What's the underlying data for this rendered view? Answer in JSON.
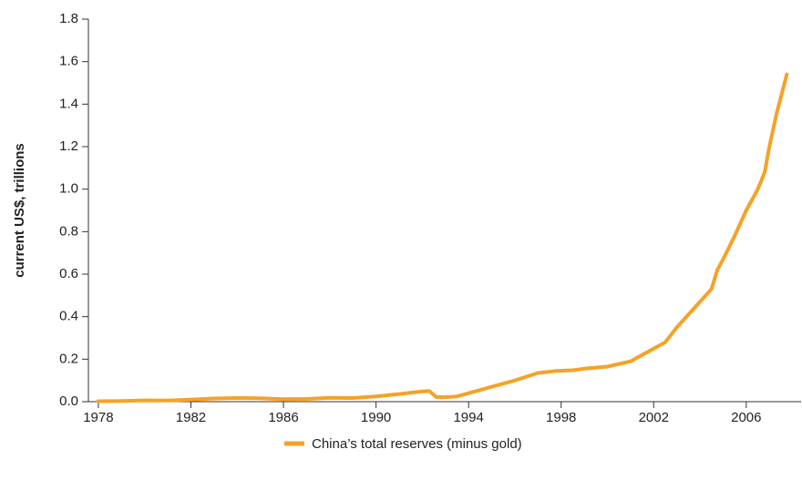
{
  "chart_data": {
    "type": "line",
    "y_label": "current US$, trillions",
    "x": [
      1978,
      1979,
      1980,
      1981,
      1982,
      1983,
      1984,
      1985,
      1986,
      1987,
      1988,
      1989,
      1990,
      1991,
      1992,
      1992.3,
      1992.6,
      1993,
      1993.5,
      1994,
      1995,
      1996,
      1997,
      1997.8,
      1998.5,
      1999,
      2000,
      2001,
      2002,
      2002.5,
      2003,
      2003.5,
      2004,
      2004.5,
      2004.75,
      2005,
      2005.5,
      2006,
      2006.5,
      2006.8,
      2007,
      2007.3,
      2007.75
    ],
    "series": [
      {
        "name": "China’s total reserves (minus gold)",
        "color": "#f5a226",
        "values": [
          0.002,
          0.003,
          0.006,
          0.005,
          0.01,
          0.015,
          0.017,
          0.016,
          0.012,
          0.013,
          0.018,
          0.017,
          0.025,
          0.036,
          0.048,
          0.05,
          0.022,
          0.021,
          0.025,
          0.04,
          0.07,
          0.1,
          0.135,
          0.145,
          0.148,
          0.155,
          0.165,
          0.19,
          0.25,
          0.28,
          0.35,
          0.41,
          0.47,
          0.53,
          0.62,
          0.67,
          0.78,
          0.9,
          1.0,
          1.08,
          1.2,
          1.35,
          1.54
        ]
      }
    ],
    "xlim": [
      1977.57,
      2008.37
    ],
    "xticks": [
      1978,
      1982,
      1986,
      1990,
      1994,
      1998,
      2002,
      2006
    ],
    "ylim": [
      0,
      1.8
    ],
    "yticks": [
      {
        "value": 0,
        "label": "0.0"
      },
      0.2,
      0.4,
      0.6,
      0.8,
      {
        "value": 1,
        "label": "1.0"
      },
      1.2,
      1.4,
      1.6,
      1.8
    ]
  }
}
